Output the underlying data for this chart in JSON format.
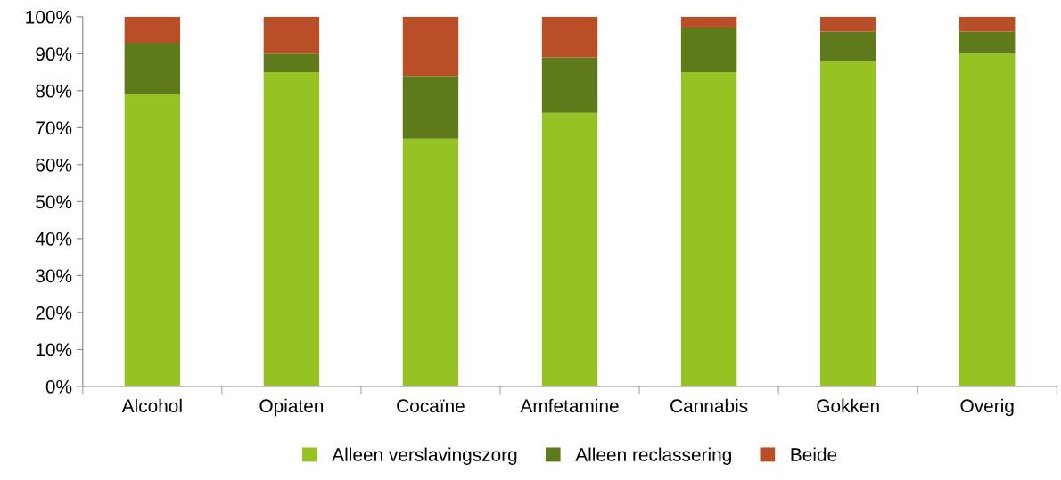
{
  "chart_data": {
    "type": "bar",
    "stacked": true,
    "categories": [
      "Alcohol",
      "Opiaten",
      "Cocaïne",
      "Amfetamine",
      "Cannabis",
      "Gokken",
      "Overig"
    ],
    "series": [
      {
        "name": "Alleen verslavingszorg",
        "color": "#97c223",
        "values": [
          79,
          85,
          67,
          74,
          85,
          88,
          90
        ]
      },
      {
        "name": "Alleen reclassering",
        "color": "#5f7a1a",
        "values": [
          14,
          5,
          17,
          15,
          12,
          8,
          6
        ]
      },
      {
        "name": "Beide",
        "color": "#b84f27",
        "values": [
          7,
          10,
          16,
          11,
          3,
          4,
          4
        ]
      }
    ],
    "ylim": [
      0,
      100
    ],
    "yticks": [
      {
        "value": 0,
        "label": "0%"
      },
      {
        "value": 10,
        "label": "10%"
      },
      {
        "value": 20,
        "label": "20%"
      },
      {
        "value": 30,
        "label": "30%"
      },
      {
        "value": 40,
        "label": "40%"
      },
      {
        "value": 50,
        "label": "50%"
      },
      {
        "value": 60,
        "label": "60%"
      },
      {
        "value": 70,
        "label": "70%"
      },
      {
        "value": 80,
        "label": "80%"
      },
      {
        "value": 90,
        "label": "90%"
      },
      {
        "value": 100,
        "label": "100%"
      }
    ],
    "grid": false,
    "legend": "bottom"
  }
}
